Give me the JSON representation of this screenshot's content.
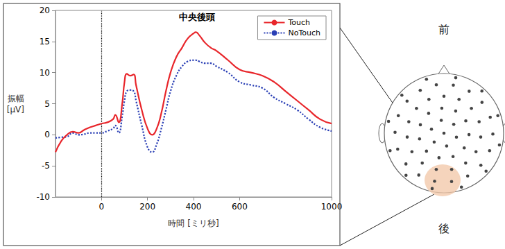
{
  "chart_data": {
    "type": "line",
    "title": "中央後頭",
    "xlabel": "時間 [ミリ秒]",
    "ylabel": "振幅 [μV]",
    "xlim": [
      -200,
      1000
    ],
    "xticks": [
      0,
      200,
      400,
      600,
      1000
    ],
    "ylim": [
      -10,
      20
    ],
    "yticks": [
      -10,
      -5,
      0,
      5,
      10,
      15,
      20
    ],
    "grid": false,
    "legend": "upper right",
    "onset": 0,
    "x": [
      -200,
      -175,
      -150,
      -125,
      -100,
      -75,
      -50,
      -25,
      0,
      25,
      50,
      60,
      75,
      90,
      100,
      110,
      125,
      140,
      150,
      175,
      200,
      220,
      240,
      260,
      280,
      300,
      325,
      350,
      375,
      400,
      410,
      425,
      450,
      475,
      500,
      550,
      600,
      650,
      700,
      750,
      800,
      850,
      900,
      950,
      1000
    ],
    "series": [
      {
        "name": "Touch",
        "color": "#e8262b",
        "line_style": "solid",
        "values": [
          -2.8,
          -1.0,
          0.0,
          0.5,
          0.3,
          0.8,
          1.2,
          1.5,
          1.8,
          2.0,
          2.5,
          3.2,
          2.0,
          5.0,
          8.5,
          9.8,
          9.5,
          9.7,
          8.0,
          4.0,
          1.0,
          0.0,
          1.0,
          3.5,
          7.0,
          10.0,
          12.5,
          14.0,
          15.5,
          16.3,
          16.5,
          16.0,
          14.8,
          14.0,
          13.5,
          12.0,
          10.5,
          10.0,
          9.5,
          8.5,
          7.0,
          5.5,
          4.0,
          2.5,
          1.8
        ]
      },
      {
        "name": "NoTouch",
        "color": "#2a3fb5",
        "line_style": "dotted",
        "values": [
          -0.5,
          -0.4,
          -0.3,
          0.3,
          0.0,
          0.1,
          0.3,
          0.3,
          0.3,
          0.6,
          1.0,
          1.5,
          0.3,
          3.0,
          5.5,
          7.0,
          7.2,
          7.0,
          5.5,
          1.5,
          -2.0,
          -2.8,
          -1.5,
          1.0,
          4.0,
          7.0,
          9.5,
          11.0,
          11.8,
          12.0,
          12.0,
          11.8,
          11.5,
          11.5,
          11.0,
          10.0,
          8.5,
          8.0,
          7.5,
          6.0,
          5.0,
          4.0,
          2.5,
          1.2,
          0.6
        ]
      }
    ]
  },
  "head_map": {
    "front": "前",
    "back": "後"
  }
}
